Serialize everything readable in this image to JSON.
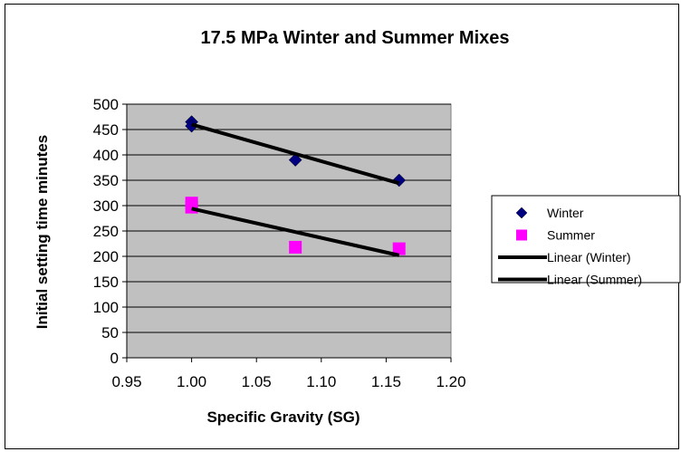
{
  "chart_data": {
    "type": "scatter",
    "title": "17.5 MPa Winter and Summer Mixes",
    "xlabel": "Specific Gravity (SG)",
    "ylabel": "Initial setting time minutes",
    "xlim": [
      0.95,
      1.2
    ],
    "ylim": [
      0,
      500
    ],
    "x_ticks": [
      "0.95",
      "1.00",
      "1.05",
      "1.10",
      "1.15",
      "1.20"
    ],
    "y_ticks": [
      "0",
      "50",
      "100",
      "150",
      "200",
      "250",
      "300",
      "350",
      "400",
      "450",
      "500"
    ],
    "grid": "horizontal",
    "legend_position": "right",
    "plot_background": "#c0c0c0",
    "series": [
      {
        "name": "Winter",
        "marker": "diamond",
        "color": "#000080",
        "points": [
          [
            1.0,
            465
          ],
          [
            1.0,
            457
          ],
          [
            1.08,
            390
          ],
          [
            1.16,
            350
          ]
        ]
      },
      {
        "name": "Summer",
        "marker": "square",
        "color": "#ff00ff",
        "points": [
          [
            1.0,
            305
          ],
          [
            1.0,
            297
          ],
          [
            1.08,
            218
          ],
          [
            1.16,
            215
          ]
        ]
      }
    ],
    "trendlines": [
      {
        "name": "Linear (Winter)",
        "color": "#000000",
        "x": [
          1.0,
          1.16
        ],
        "y": [
          460,
          344
        ]
      },
      {
        "name": "Linear (Summer)",
        "color": "#000000",
        "x": [
          1.0,
          1.16
        ],
        "y": [
          294,
          202
        ]
      }
    ]
  }
}
